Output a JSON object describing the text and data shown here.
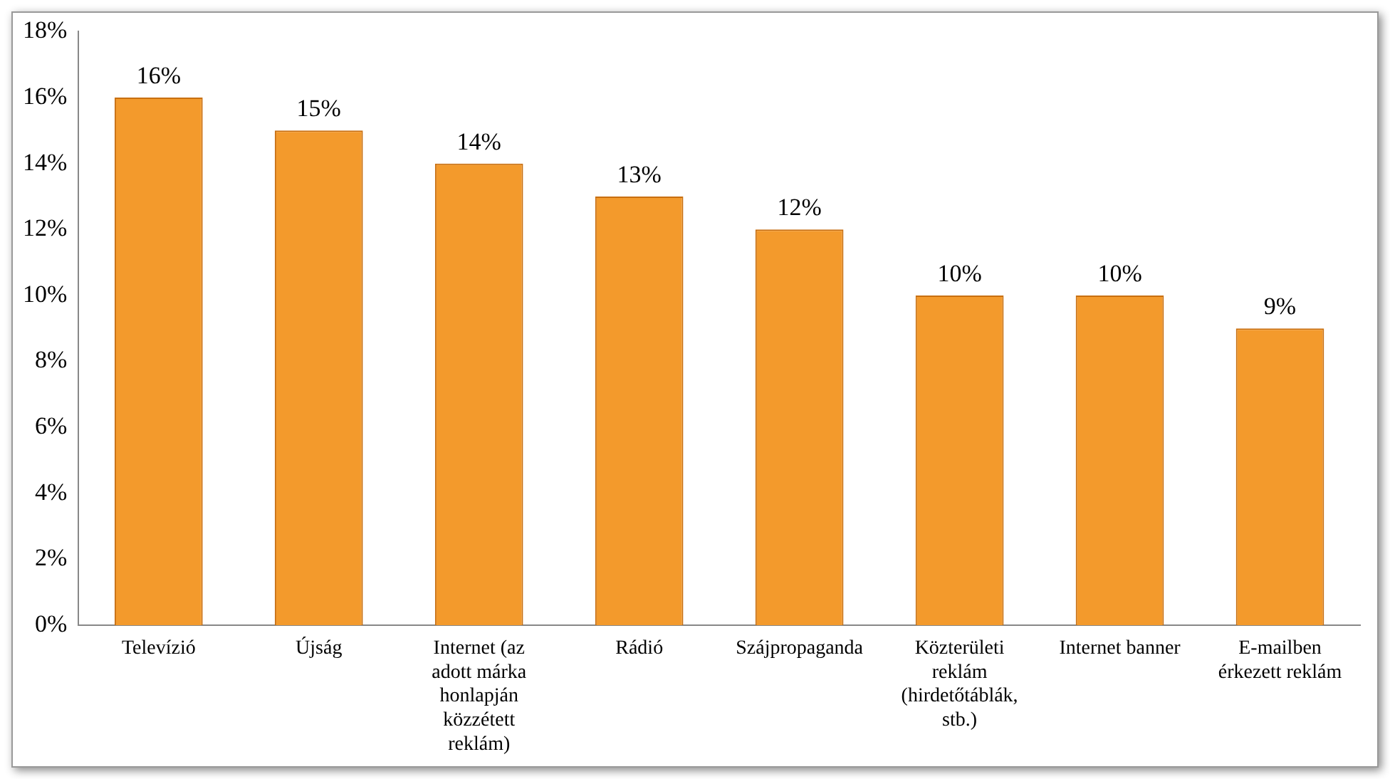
{
  "chart_data": {
    "type": "bar",
    "categories": [
      "Televízió",
      "Újság",
      "Internet (az adott márka honlapján közzétett reklám)",
      "Rádió",
      "Szájpropaganda",
      "Közterületi reklám (hirdetőtáblák, stb.)",
      "Internet banner",
      "E-mailben érkezett reklám"
    ],
    "values": [
      16,
      15,
      14,
      13,
      12,
      10,
      10,
      9
    ],
    "value_labels": [
      "16%",
      "15%",
      "14%",
      "13%",
      "12%",
      "10%",
      "10%",
      "9%"
    ],
    "color": "#f39a2c",
    "ylim": [
      0,
      18
    ],
    "yticks": [
      {
        "value": 0,
        "label": "0%"
      },
      {
        "value": 2,
        "label": "2%"
      },
      {
        "value": 4,
        "label": "4%"
      },
      {
        "value": 6,
        "label": "6%"
      },
      {
        "value": 8,
        "label": "8%"
      },
      {
        "value": 10,
        "label": "10%"
      },
      {
        "value": 12,
        "label": "12%"
      },
      {
        "value": 14,
        "label": "14%"
      },
      {
        "value": 16,
        "label": "16%"
      },
      {
        "value": 18,
        "label": "18%"
      }
    ],
    "grid": false,
    "legend": false
  }
}
